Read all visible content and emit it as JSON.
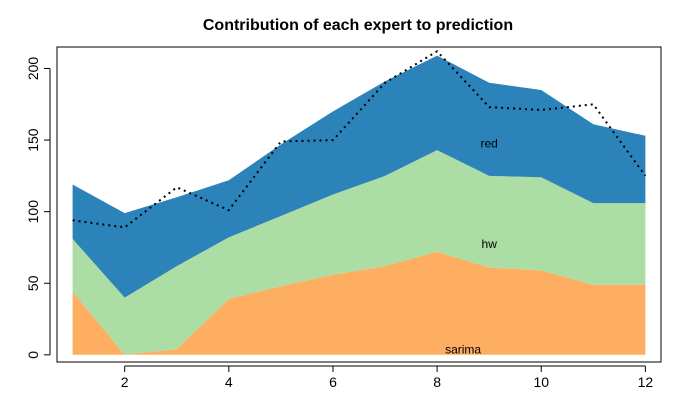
{
  "chart_data": {
    "type": "area",
    "title": "Contribution of each expert to prediction",
    "xlabel": "",
    "ylabel": "",
    "x": [
      1,
      2,
      3,
      4,
      5,
      6,
      7,
      8,
      9,
      10,
      11,
      12
    ],
    "xlim": [
      0.7,
      12.3
    ],
    "ylim": [
      -5,
      215
    ],
    "x_ticks": [
      2,
      4,
      6,
      8,
      10,
      12
    ],
    "y_ticks": [
      0,
      50,
      100,
      150,
      200
    ],
    "stacked": true,
    "series": [
      {
        "name": "sarima",
        "color": "#fdae61",
        "values": [
          44,
          0,
          4,
          39,
          48,
          56,
          62,
          72,
          61,
          59,
          49,
          49
        ]
      },
      {
        "name": "hw",
        "color": "#abdda4",
        "values": [
          37,
          40,
          58,
          43,
          49,
          56,
          63,
          71,
          64,
          65,
          57,
          57
        ]
      },
      {
        "name": "red",
        "color": "#2b83ba",
        "values": [
          38,
          59,
          48,
          40,
          50,
          58,
          66,
          66,
          65,
          61,
          55,
          47
        ]
      }
    ],
    "prediction_line": {
      "style": "dotted",
      "color": "#000000",
      "values": [
        94,
        89,
        117,
        101,
        149,
        150,
        190,
        212,
        173,
        171,
        175,
        125
      ]
    },
    "area_labels": [
      {
        "text": "sarima",
        "x": 8.5,
        "y": 3
      },
      {
        "text": "hw",
        "x": 9.0,
        "y": 77
      },
      {
        "text": "red",
        "x": 9.0,
        "y": 147
      }
    ],
    "grid": false,
    "legend": "none"
  }
}
